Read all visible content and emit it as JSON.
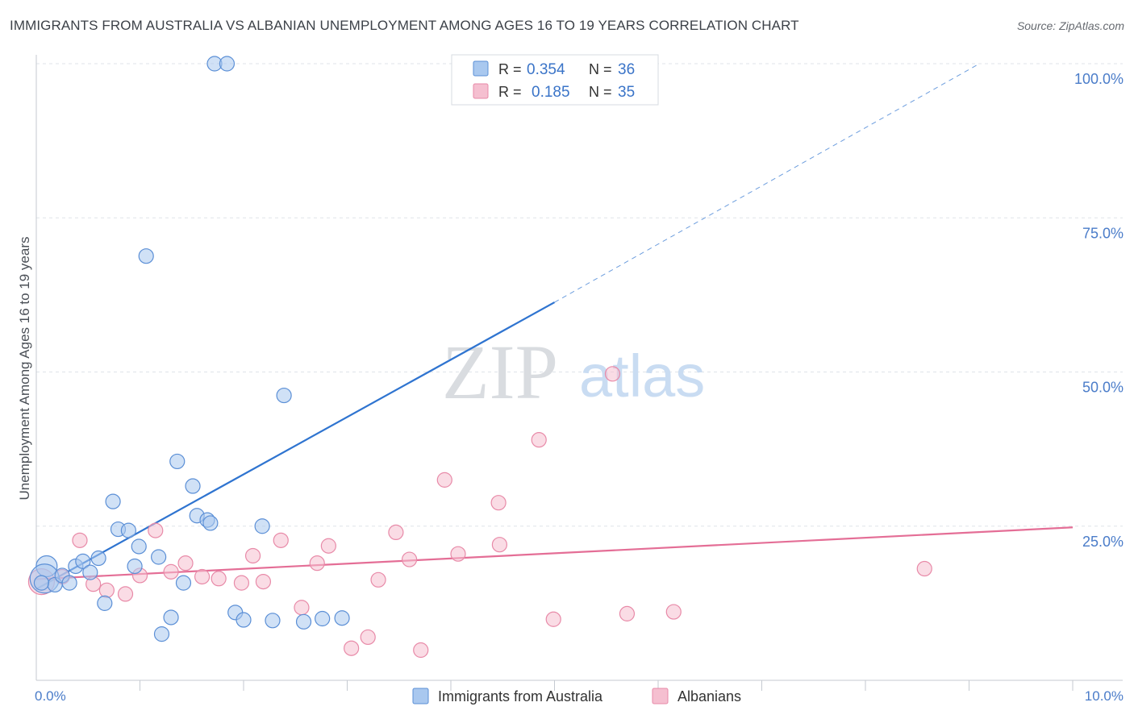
{
  "title": "IMMIGRANTS FROM AUSTRALIA VS ALBANIAN UNEMPLOYMENT AMONG AGES 16 TO 19 YEARS CORRELATION CHART",
  "source": "Source: ZipAtlas.com",
  "watermark": {
    "zip": "ZIP",
    "atlas": "atlas"
  },
  "colors": {
    "blue_fill": "#a9c8ef",
    "blue_stroke": "#5b8fd6",
    "blue_line": "#2f74d0",
    "pink_fill": "#f5bfd0",
    "pink_stroke": "#e88aa8",
    "pink_line": "#e46e96",
    "grid": "#dfe3e8",
    "axis_text": "#4a7cc9"
  },
  "legend": {
    "rows": [
      {
        "r_label": "R = ",
        "r_value": "0.354",
        "n_label": "N = ",
        "n_value": "36"
      },
      {
        "r_label": "R = ",
        "r_value": "0.185",
        "n_label": "N = ",
        "n_value": "35"
      }
    ]
  },
  "chart_data": {
    "type": "scatter",
    "title": "IMMIGRANTS FROM AUSTRALIA VS ALBANIAN UNEMPLOYMENT AMONG AGES 16 TO 19 YEARS CORRELATION CHART",
    "xlabel": "",
    "ylabel": "Unemployment Among Ages 16 to 19 years",
    "xlim": [
      0,
      10
    ],
    "ylim": [
      0,
      100
    ],
    "x_tick_labels": [
      "0.0%",
      "10.0%"
    ],
    "y_tick_labels": [
      "25.0%",
      "50.0%",
      "75.0%",
      "100.0%"
    ],
    "y_ticks": [
      25,
      50,
      75,
      100
    ],
    "legend_bottom": [
      "Immigrants from Australia",
      "Albanians"
    ],
    "series": [
      {
        "name": "Immigrants from Australia",
        "r": 0.354,
        "n": 36,
        "points": [
          {
            "x": 0.1,
            "y": 18.5,
            "s": 13
          },
          {
            "x": 0.08,
            "y": 16.5,
            "s": 18
          },
          {
            "x": 0.18,
            "y": 15.5
          },
          {
            "x": 0.25,
            "y": 17.0
          },
          {
            "x": 0.32,
            "y": 15.8
          },
          {
            "x": 0.38,
            "y": 18.5
          },
          {
            "x": 0.45,
            "y": 19.3
          },
          {
            "x": 0.52,
            "y": 17.5
          },
          {
            "x": 0.6,
            "y": 19.8
          },
          {
            "x": 0.66,
            "y": 12.5
          },
          {
            "x": 0.74,
            "y": 29.0
          },
          {
            "x": 0.79,
            "y": 24.5
          },
          {
            "x": 0.89,
            "y": 24.3
          },
          {
            "x": 0.95,
            "y": 18.5
          },
          {
            "x": 0.99,
            "y": 21.7
          },
          {
            "x": 1.06,
            "y": 68.8
          },
          {
            "x": 1.18,
            "y": 20.0
          },
          {
            "x": 1.21,
            "y": 7.5
          },
          {
            "x": 1.3,
            "y": 10.2
          },
          {
            "x": 1.36,
            "y": 35.5
          },
          {
            "x": 1.42,
            "y": 15.8
          },
          {
            "x": 1.51,
            "y": 31.5
          },
          {
            "x": 1.55,
            "y": 26.7
          },
          {
            "x": 1.65,
            "y": 26.0
          },
          {
            "x": 1.68,
            "y": 25.5
          },
          {
            "x": 1.72,
            "y": 100.0
          },
          {
            "x": 1.84,
            "y": 100.0
          },
          {
            "x": 1.92,
            "y": 11.0
          },
          {
            "x": 2.0,
            "y": 9.8
          },
          {
            "x": 2.18,
            "y": 25.0
          },
          {
            "x": 2.28,
            "y": 9.7
          },
          {
            "x": 2.39,
            "y": 46.2
          },
          {
            "x": 2.58,
            "y": 9.5
          },
          {
            "x": 2.76,
            "y": 10.0
          },
          {
            "x": 2.95,
            "y": 10.1
          },
          {
            "x": 0.05,
            "y": 15.8
          }
        ],
        "trend": {
          "x0": 0,
          "y0": 14.8,
          "x1": 5.0,
          "y1": 61.3,
          "dash_x1": 9.1,
          "dash_y1": 100.0
        }
      },
      {
        "name": "Albanians",
        "r": 0.185,
        "n": 35,
        "points": [
          {
            "x": 0.05,
            "y": 16.0,
            "s": 16
          },
          {
            "x": 0.25,
            "y": 16.8
          },
          {
            "x": 0.42,
            "y": 22.7
          },
          {
            "x": 0.55,
            "y": 15.6
          },
          {
            "x": 0.68,
            "y": 14.6
          },
          {
            "x": 0.86,
            "y": 14.0
          },
          {
            "x": 1.0,
            "y": 17.0
          },
          {
            "x": 1.15,
            "y": 24.3
          },
          {
            "x": 1.3,
            "y": 17.6
          },
          {
            "x": 1.44,
            "y": 19.0
          },
          {
            "x": 1.6,
            "y": 16.8
          },
          {
            "x": 1.76,
            "y": 16.5
          },
          {
            "x": 1.98,
            "y": 15.8
          },
          {
            "x": 2.09,
            "y": 20.2
          },
          {
            "x": 2.19,
            "y": 16.0
          },
          {
            "x": 2.36,
            "y": 22.7
          },
          {
            "x": 2.56,
            "y": 11.8
          },
          {
            "x": 2.71,
            "y": 19.0
          },
          {
            "x": 2.82,
            "y": 21.8
          },
          {
            "x": 3.04,
            "y": 5.2
          },
          {
            "x": 3.2,
            "y": 7.0
          },
          {
            "x": 3.3,
            "y": 16.3
          },
          {
            "x": 3.47,
            "y": 24.0
          },
          {
            "x": 3.6,
            "y": 19.6
          },
          {
            "x": 3.71,
            "y": 4.9
          },
          {
            "x": 3.94,
            "y": 32.5
          },
          {
            "x": 4.07,
            "y": 20.5
          },
          {
            "x": 4.46,
            "y": 28.8
          },
          {
            "x": 4.47,
            "y": 22.0
          },
          {
            "x": 4.85,
            "y": 39.0
          },
          {
            "x": 4.99,
            "y": 9.9
          },
          {
            "x": 5.56,
            "y": 49.7
          },
          {
            "x": 5.7,
            "y": 10.8
          },
          {
            "x": 6.15,
            "y": 11.1
          },
          {
            "x": 8.57,
            "y": 18.1
          }
        ],
        "trend": {
          "x0": 0,
          "y0": 16.4,
          "x1": 10.0,
          "y1": 24.8
        }
      }
    ]
  }
}
